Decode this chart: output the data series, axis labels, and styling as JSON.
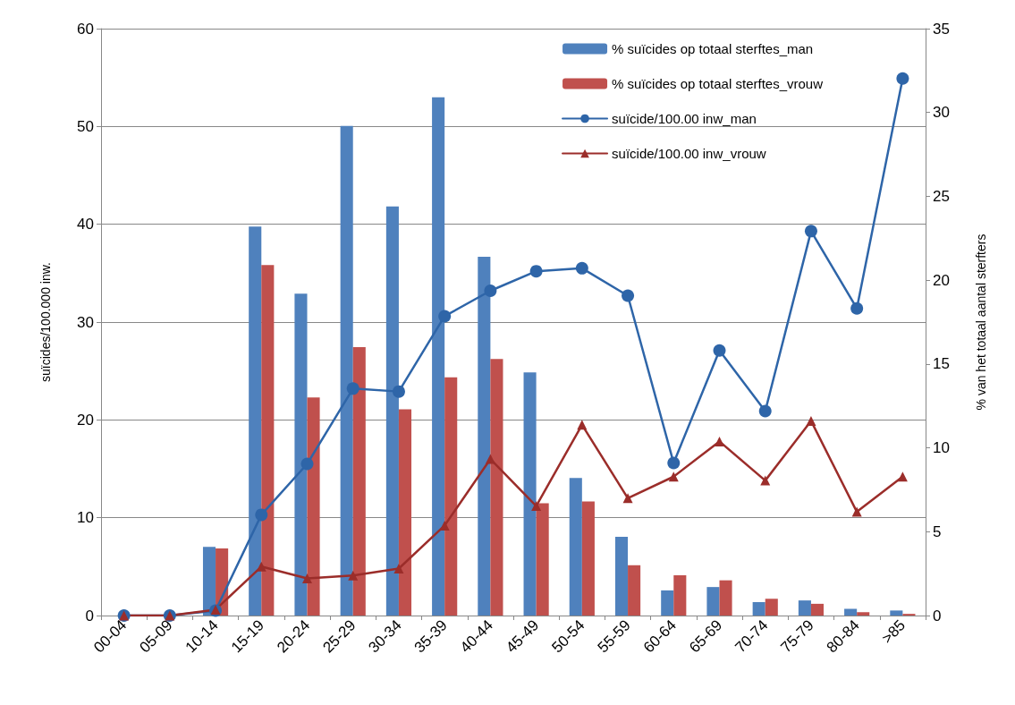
{
  "chart_data": {
    "type": "bar",
    "ylabel": "suïcides/100.000 inw.",
    "y2label": "% van het totaal aantal sterfters",
    "categories": [
      "00-04",
      "05-09",
      "10-14",
      "15-19",
      "20-24",
      "25-29",
      "30-34",
      "35-39",
      "40-44",
      "45-49",
      "50-54",
      "55-59",
      "60-64",
      "65-69",
      "70-74",
      "75-79",
      "80-84",
      ">85"
    ],
    "series": [
      {
        "name": "% suïcides op totaal sterftes_man",
        "axis": "y2",
        "color": "#4f81bd",
        "values": [
          0,
          0,
          4.1,
          23.2,
          19.2,
          29.2,
          24.4,
          30.9,
          21.4,
          14.5,
          8.2,
          4.7,
          1.5,
          1.7,
          0.8,
          0.9,
          0.4,
          0.3
        ]
      },
      {
        "name": "% suïcides op totaal sterftes_vrouw",
        "axis": "y2",
        "color": "#c0504d",
        "values": [
          0,
          0,
          4.0,
          20.9,
          13.0,
          16.0,
          12.3,
          14.2,
          15.3,
          6.7,
          6.8,
          3.0,
          2.4,
          2.1,
          1.0,
          0.7,
          0.2,
          0.1
        ]
      },
      {
        "name": "suïcide/100.00 inw_man",
        "type": "line",
        "axis": "y",
        "marker": "circle",
        "color": "#2e65a8",
        "values": [
          0,
          0,
          0.5,
          10.3,
          15.5,
          23.2,
          22.9,
          30.6,
          33.2,
          35.2,
          35.5,
          32.7,
          15.6,
          27.1,
          20.9,
          39.3,
          31.4,
          54.9
        ]
      },
      {
        "name": "suïcide/100.00 inw_vrouw",
        "type": "line",
        "axis": "y",
        "marker": "triangle",
        "color": "#9b2d2a",
        "values": [
          0,
          0,
          0.6,
          5.0,
          3.8,
          4.1,
          4.8,
          9.2,
          16.0,
          11.2,
          19.5,
          12.0,
          14.2,
          17.8,
          13.8,
          19.9,
          10.6,
          14.2
        ]
      }
    ],
    "ylim": [
      0,
      60
    ],
    "yticks": [
      0,
      10,
      20,
      30,
      40,
      50,
      60
    ],
    "y2lim": [
      0,
      35
    ],
    "y2ticks": [
      0,
      5,
      10,
      15,
      20,
      25,
      30,
      35
    ],
    "grid": "y",
    "legend": "top right",
    "line_style": "solid"
  }
}
